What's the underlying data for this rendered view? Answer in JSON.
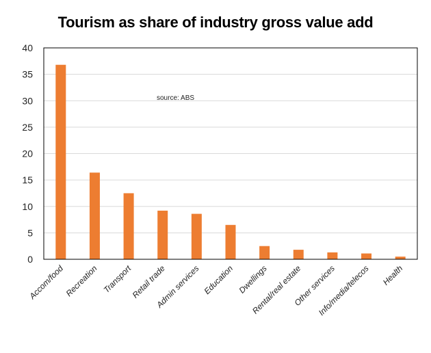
{
  "chart_data": {
    "type": "bar",
    "title": "Tourism as share of industry gross value add",
    "annotation": "source:  ABS",
    "categories": [
      "Accom/food",
      "Recreation",
      "Transport",
      "Retail trade",
      "Admin services",
      "Education",
      "Dwellings",
      "Rental/real estate",
      "Other services",
      "Info/media/telecos",
      "Health"
    ],
    "values": [
      36.8,
      16.4,
      12.5,
      9.2,
      8.6,
      6.5,
      2.5,
      1.8,
      1.3,
      1.1,
      0.5
    ],
    "ylim": [
      0,
      40
    ],
    "yticks": [
      0,
      5,
      10,
      15,
      20,
      25,
      30,
      35,
      40
    ],
    "grid": true,
    "bar_color": "#ED7D31"
  }
}
